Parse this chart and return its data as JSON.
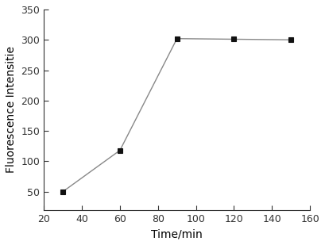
{
  "x": [
    30,
    60,
    90,
    120,
    150
  ],
  "y": [
    50,
    118,
    302,
    301,
    300
  ],
  "xlim": [
    20,
    160
  ],
  "ylim": [
    20,
    350
  ],
  "xticks": [
    20,
    40,
    60,
    80,
    100,
    120,
    140,
    160
  ],
  "yticks": [
    50,
    100,
    150,
    200,
    250,
    300,
    350
  ],
  "xlabel": "Time/min",
  "ylabel": "Fluorescence Intensitie",
  "line_color": "#888888",
  "marker": "s",
  "marker_color": "#111111",
  "marker_size": 5,
  "linewidth": 1.0,
  "background_color": "#ffffff",
  "tick_labelsize": 9,
  "xlabel_fontsize": 10,
  "ylabel_fontsize": 10
}
